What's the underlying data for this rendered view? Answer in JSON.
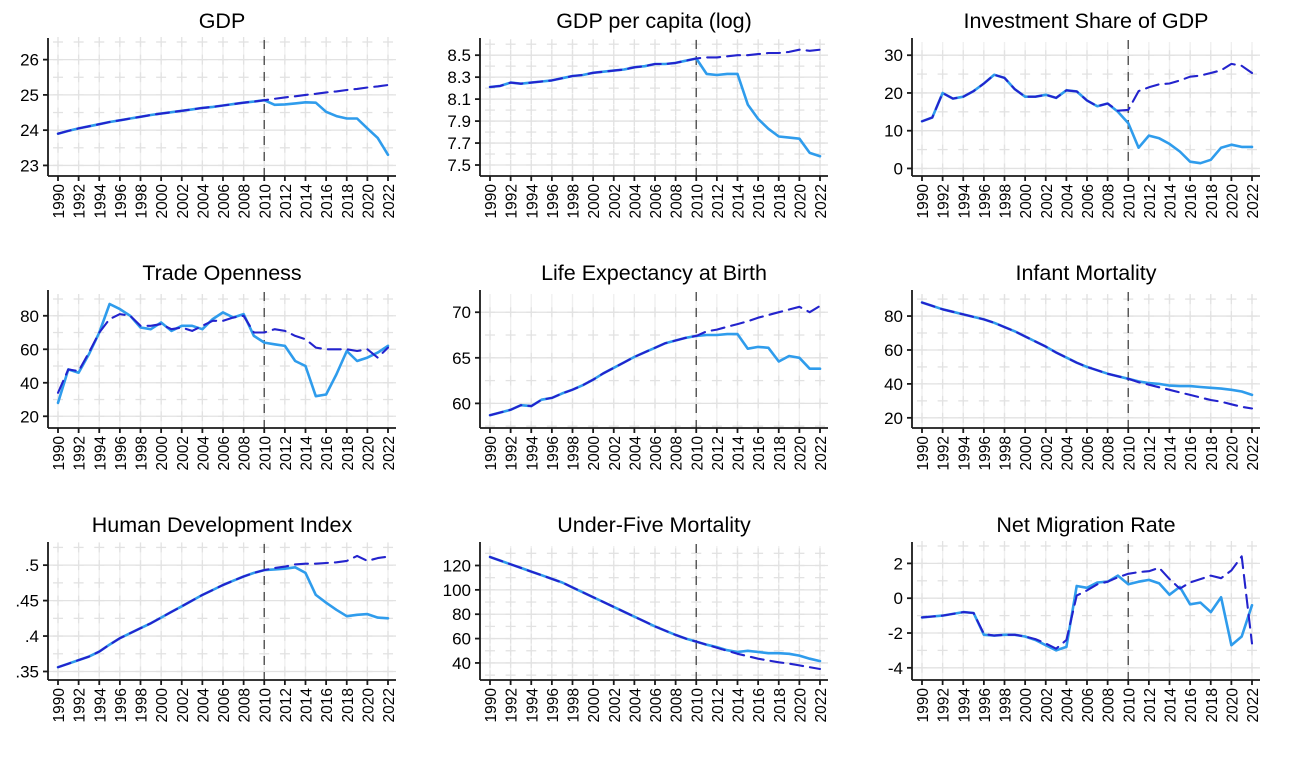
{
  "colors": {
    "actual_line": "#2f9cec",
    "synthetic_line": "#2323cd",
    "treatment_line": "#5a5a5a",
    "grid_line": "#efefef",
    "grid_cross": "#e2e2e2",
    "axis": "#1a1a1a",
    "text": "#000000",
    "background": "#ffffff"
  },
  "chart_data": {
    "type": "line",
    "x_years": [
      1990,
      1991,
      1992,
      1993,
      1994,
      1995,
      1996,
      1997,
      1998,
      1999,
      2000,
      2001,
      2002,
      2003,
      2004,
      2005,
      2006,
      2007,
      2008,
      2009,
      2010,
      2011,
      2012,
      2013,
      2014,
      2015,
      2016,
      2017,
      2018,
      2019,
      2020,
      2021,
      2022
    ],
    "x_tick_labels": [
      "1990",
      "1992",
      "1994",
      "1996",
      "1998",
      "2000",
      "2002",
      "2004",
      "2006",
      "2008",
      "2010",
      "2012",
      "2014",
      "2016",
      "2018",
      "2020",
      "2022"
    ],
    "treatment_year": 2010,
    "legend": "none",
    "series_names": [
      "actual",
      "synthetic"
    ],
    "panels": [
      {
        "title": "GDP",
        "yticks": [
          23,
          24,
          25,
          26
        ],
        "ytick_labels": [
          "23",
          "24",
          "25",
          "26"
        ],
        "ylim": [
          22.7,
          26.5
        ],
        "series": [
          {
            "name": "actual",
            "style": "solid",
            "values": [
              23.9,
              23.98,
              24.05,
              24.11,
              24.17,
              24.23,
              24.28,
              24.33,
              24.38,
              24.43,
              24.47,
              24.51,
              24.55,
              24.59,
              24.63,
              24.66,
              24.7,
              24.74,
              24.78,
              24.81,
              24.85,
              24.72,
              24.73,
              24.76,
              24.79,
              24.78,
              24.52,
              24.4,
              24.33,
              24.33,
              24.05,
              23.78,
              23.3
            ]
          },
          {
            "name": "synthetic",
            "style": "dashed",
            "values": [
              23.9,
              23.98,
              24.05,
              24.11,
              24.17,
              24.23,
              24.28,
              24.33,
              24.38,
              24.43,
              24.47,
              24.51,
              24.55,
              24.59,
              24.63,
              24.66,
              24.7,
              24.74,
              24.78,
              24.81,
              24.85,
              24.89,
              24.93,
              24.96,
              25.0,
              25.03,
              25.07,
              25.1,
              25.14,
              25.17,
              25.21,
              25.24,
              25.28
            ]
          }
        ]
      },
      {
        "title": "GDP per capita (log)",
        "yticks": [
          7.5,
          7.7,
          7.9,
          8.1,
          8.3,
          8.5
        ],
        "ytick_labels": [
          "7.5",
          "7.7",
          "7.9",
          "8.1",
          "8.3",
          "8.5"
        ],
        "ylim": [
          7.4,
          8.62
        ],
        "series": [
          {
            "name": "actual",
            "style": "solid",
            "values": [
              8.21,
              8.22,
              8.25,
              8.24,
              8.25,
              8.26,
              8.27,
              8.29,
              8.31,
              8.32,
              8.34,
              8.35,
              8.36,
              8.37,
              8.39,
              8.4,
              8.42,
              8.42,
              8.43,
              8.45,
              8.47,
              8.33,
              8.32,
              8.33,
              8.33,
              8.05,
              7.92,
              7.83,
              7.76,
              7.75,
              7.74,
              7.61,
              7.58
            ]
          },
          {
            "name": "synthetic",
            "style": "dashed",
            "values": [
              8.21,
              8.22,
              8.25,
              8.24,
              8.25,
              8.26,
              8.27,
              8.29,
              8.31,
              8.32,
              8.34,
              8.35,
              8.36,
              8.37,
              8.39,
              8.4,
              8.42,
              8.42,
              8.43,
              8.45,
              8.47,
              8.48,
              8.48,
              8.49,
              8.5,
              8.5,
              8.51,
              8.52,
              8.52,
              8.53,
              8.55,
              8.54,
              8.55
            ]
          }
        ]
      },
      {
        "title": "Investment Share of GDP",
        "yticks": [
          0,
          10,
          20,
          30
        ],
        "ytick_labels": [
          "0",
          "10",
          "20",
          "30"
        ],
        "ylim": [
          -2,
          33.5
        ],
        "series": [
          {
            "name": "actual",
            "style": "solid",
            "values": [
              12.5,
              13.5,
              20.0,
              18.5,
              19.0,
              20.5,
              22.5,
              24.8,
              24.0,
              21.0,
              19.0,
              19.0,
              19.5,
              18.7,
              20.7,
              20.4,
              18.0,
              16.5,
              17.2,
              15.0,
              12.0,
              5.5,
              8.7,
              8.0,
              6.5,
              4.5,
              1.8,
              1.4,
              2.3,
              5.5,
              6.3,
              5.7,
              5.7
            ]
          },
          {
            "name": "synthetic",
            "style": "dashed",
            "values": [
              12.5,
              13.5,
              20.0,
              18.5,
              19.0,
              20.5,
              22.5,
              24.8,
              24.0,
              21.0,
              19.0,
              19.0,
              19.5,
              18.7,
              20.7,
              20.4,
              18.0,
              16.5,
              17.2,
              15.3,
              15.5,
              20.5,
              21.5,
              22.3,
              22.5,
              23.3,
              24.3,
              24.6,
              25.3,
              26.0,
              27.7,
              27.2,
              25.3
            ]
          }
        ]
      },
      {
        "title": "Trade Openness",
        "yticks": [
          20,
          40,
          60,
          80
        ],
        "ytick_labels": [
          "20",
          "40",
          "60",
          "80"
        ],
        "ylim": [
          13,
          93
        ],
        "series": [
          {
            "name": "actual",
            "style": "solid",
            "values": [
              28,
              48,
              46,
              57,
              70,
              87,
              84,
              80,
              73,
              72,
              76,
              71,
              74,
              74,
              72,
              78,
              82,
              79,
              81,
              68,
              64,
              63,
              62,
              53,
              50,
              32,
              33,
              45,
              59,
              53,
              55,
              58,
              62
            ]
          },
          {
            "name": "synthetic",
            "style": "dashed",
            "values": [
              34,
              48,
              47,
              58,
              70,
              78,
              81,
              80,
              74,
              74,
              75,
              72,
              73,
              71,
              74,
              77,
              77,
              79,
              80,
              70,
              70,
              72,
              71,
              68,
              66,
              61,
              60,
              60,
              60,
              59,
              60,
              55,
              61
            ]
          }
        ]
      },
      {
        "title": "Life Expectancy at Birth",
        "yticks": [
          60,
          65,
          70
        ],
        "ytick_labels": [
          "60",
          "65",
          "70"
        ],
        "ylim": [
          57.3,
          72
        ],
        "series": [
          {
            "name": "actual",
            "style": "solid",
            "values": [
              58.7,
              59.0,
              59.3,
              59.8,
              59.7,
              60.4,
              60.6,
              61.1,
              61.5,
              62.0,
              62.6,
              63.3,
              63.9,
              64.5,
              65.1,
              65.6,
              66.1,
              66.6,
              66.9,
              67.2,
              67.4,
              67.5,
              67.5,
              67.6,
              67.6,
              66.0,
              66.2,
              66.1,
              64.6,
              65.2,
              65.0,
              63.8,
              63.8
            ]
          },
          {
            "name": "synthetic",
            "style": "dashed",
            "values": [
              58.7,
              59.0,
              59.3,
              59.8,
              59.7,
              60.4,
              60.6,
              61.1,
              61.5,
              62.0,
              62.6,
              63.3,
              63.9,
              64.5,
              65.1,
              65.6,
              66.1,
              66.6,
              66.9,
              67.2,
              67.4,
              67.9,
              68.1,
              68.4,
              68.7,
              69.0,
              69.4,
              69.7,
              70.0,
              70.3,
              70.6,
              70.0,
              70.7
            ]
          }
        ]
      },
      {
        "title": "Infant Mortality",
        "yticks": [
          20,
          40,
          60,
          80
        ],
        "ytick_labels": [
          "20",
          "40",
          "60",
          "80"
        ],
        "ylim": [
          14,
          93
        ],
        "series": [
          {
            "name": "actual",
            "style": "solid",
            "values": [
              88,
              86,
              84,
              82.5,
              81,
              79.5,
              78,
              76,
              73.5,
              71,
              68,
              65,
              62,
              58.5,
              55.5,
              52.5,
              50,
              48,
              46,
              44.5,
              43,
              41.5,
              40.5,
              40,
              39,
              38.7,
              38.7,
              38.2,
              37.7,
              37.2,
              36.5,
              35.5,
              33.5
            ]
          },
          {
            "name": "synthetic",
            "style": "dashed",
            "values": [
              88,
              86,
              84,
              82.5,
              81,
              79.5,
              78,
              76,
              73.5,
              71,
              68,
              65,
              62,
              58.5,
              55.5,
              52.5,
              50,
              48,
              46,
              44.5,
              43,
              41,
              39.5,
              38,
              36.5,
              35,
              33.5,
              32,
              30.5,
              29.5,
              28,
              26.5,
              25.5
            ]
          }
        ]
      },
      {
        "title": "Human Development Index",
        "yticks": [
          0.35,
          0.4,
          0.45,
          0.5
        ],
        "ytick_labels": [
          ".35",
          ".4",
          ".45",
          ".5"
        ],
        "ylim": [
          0.338,
          0.527
        ],
        "series": [
          {
            "name": "actual",
            "style": "solid",
            "values": [
              0.356,
              0.361,
              0.366,
              0.371,
              0.378,
              0.388,
              0.397,
              0.404,
              0.411,
              0.418,
              0.426,
              0.434,
              0.442,
              0.45,
              0.458,
              0.465,
              0.472,
              0.478,
              0.484,
              0.489,
              0.493,
              0.494,
              0.495,
              0.497,
              0.489,
              0.458,
              0.447,
              0.437,
              0.428,
              0.43,
              0.431,
              0.426,
              0.425
            ]
          },
          {
            "name": "synthetic",
            "style": "dashed",
            "values": [
              0.356,
              0.361,
              0.366,
              0.371,
              0.378,
              0.388,
              0.397,
              0.404,
              0.411,
              0.418,
              0.426,
              0.434,
              0.442,
              0.45,
              0.458,
              0.465,
              0.472,
              0.478,
              0.484,
              0.489,
              0.493,
              0.496,
              0.498,
              0.501,
              0.502,
              0.502,
              0.503,
              0.504,
              0.506,
              0.513,
              0.506,
              0.51,
              0.512
            ]
          }
        ]
      },
      {
        "title": "Under-Five Mortality",
        "yticks": [
          40,
          60,
          80,
          100,
          120
        ],
        "ytick_labels": [
          "40",
          "60",
          "80",
          "100",
          "120"
        ],
        "ylim": [
          26,
          136
        ],
        "series": [
          {
            "name": "actual",
            "style": "solid",
            "values": [
              127,
              124,
              121,
              118,
              115,
              112,
              109,
              106,
              102,
              98,
              94,
              90,
              86,
              82,
              78,
              74,
              70,
              66.5,
              63,
              60,
              57.5,
              55,
              53,
              50.5,
              49,
              50,
              49,
              48,
              48,
              47.5,
              46,
              43.5,
              41.5
            ]
          },
          {
            "name": "synthetic",
            "style": "dashed",
            "values": [
              127,
              124,
              121,
              118,
              115,
              112,
              109,
              106,
              102,
              98,
              94,
              90,
              86,
              82,
              78,
              74,
              70,
              66.5,
              63,
              60,
              57.5,
              55,
              52.5,
              50,
              47.5,
              45.5,
              43.5,
              42,
              40.5,
              39.5,
              38,
              36.5,
              35
            ]
          }
        ]
      },
      {
        "title": "Net Migration Rate",
        "yticks": [
          -4,
          -2,
          0,
          2
        ],
        "ytick_labels": [
          "-4",
          "-2",
          "0",
          "2"
        ],
        "ylim": [
          -4.7,
          3.0
        ],
        "series": [
          {
            "name": "actual",
            "style": "solid",
            "values": [
              -1.1,
              -1.05,
              -1.0,
              -0.9,
              -0.8,
              -0.85,
              -2.1,
              -2.15,
              -2.1,
              -2.1,
              -2.2,
              -2.4,
              -2.7,
              -3.0,
              -2.8,
              0.7,
              0.6,
              0.9,
              0.95,
              1.3,
              0.8,
              0.95,
              1.05,
              0.85,
              0.2,
              0.65,
              -0.35,
              -0.25,
              -0.8,
              0.05,
              -2.7,
              -2.2,
              -0.4
            ]
          },
          {
            "name": "synthetic",
            "style": "dashed",
            "values": [
              -1.1,
              -1.05,
              -1.0,
              -0.9,
              -0.8,
              -0.85,
              -2.05,
              -2.15,
              -2.1,
              -2.1,
              -2.2,
              -2.35,
              -2.6,
              -2.9,
              -2.4,
              0.15,
              0.45,
              0.8,
              0.95,
              1.2,
              1.4,
              1.5,
              1.55,
              1.75,
              1.1,
              0.55,
              0.9,
              1.1,
              1.3,
              1.15,
              1.6,
              2.4,
              -2.6
            ]
          }
        ]
      }
    ]
  }
}
